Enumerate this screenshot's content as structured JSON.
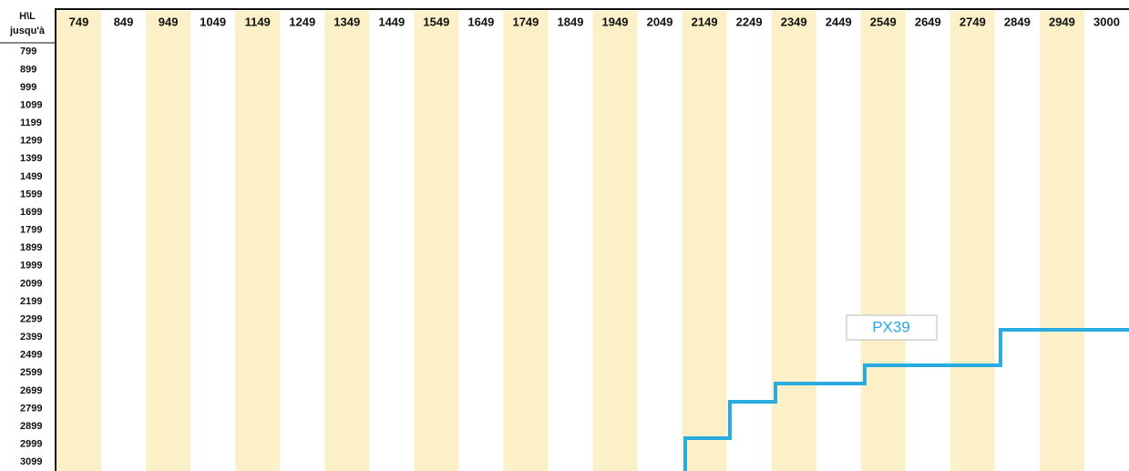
{
  "corner": [
    "H\\L",
    "jusqu'à"
  ],
  "columns": [
    "749",
    "849",
    "949",
    "1049",
    "1149",
    "1249",
    "1349",
    "1449",
    "1549",
    "1649",
    "1749",
    "1849",
    "1949",
    "2049",
    "2149",
    "2249",
    "2349",
    "2449",
    "2549",
    "2649",
    "2749",
    "2849",
    "2949",
    "3000"
  ],
  "rows": [
    "799",
    "899",
    "999",
    "1099",
    "1199",
    "1299",
    "1399",
    "1499",
    "1599",
    "1699",
    "1799",
    "1899",
    "1999",
    "2099",
    "2199",
    "2299",
    "2399",
    "2499",
    "2599",
    "2699",
    "2799",
    "2899",
    "2999",
    "3099"
  ],
  "zone_label": "PX39"
}
